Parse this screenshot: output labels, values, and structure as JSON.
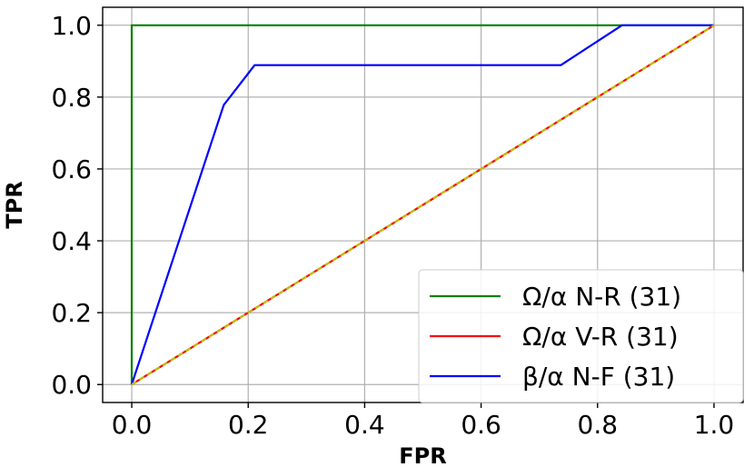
{
  "chart_data": {
    "type": "line",
    "xlabel": "FPR",
    "ylabel": "TPR",
    "xlim": [
      -0.05,
      1.05
    ],
    "ylim": [
      -0.05,
      1.05
    ],
    "xticks": [
      "0.0",
      "0.2",
      "0.4",
      "0.6",
      "0.8",
      "1.0"
    ],
    "yticks": [
      "0.0",
      "0.2",
      "0.4",
      "0.6",
      "0.8",
      "1.0"
    ],
    "grid": true,
    "legend_position": "bottom-right",
    "series": [
      {
        "name": "Ω/α N-R (31)",
        "color": "#008000",
        "dash": "solid",
        "x": [
          0.0,
          0.0,
          1.0
        ],
        "y": [
          0.0,
          1.0,
          1.0
        ]
      },
      {
        "name": "Ω/α V-R (31)",
        "color": "#ff0000",
        "dash": "solid",
        "x": [
          0.0,
          1.0
        ],
        "y": [
          0.0,
          1.0
        ]
      },
      {
        "name": "β/α N-F (31)",
        "color": "#0000ff",
        "dash": "solid",
        "x": [
          0.0,
          0.158,
          0.211,
          0.737,
          0.842,
          1.0
        ],
        "y": [
          0.0,
          0.778,
          0.889,
          0.889,
          1.0,
          1.0
        ]
      },
      {
        "name": "",
        "color": "#bfbf00",
        "dash": "dashed",
        "x": [
          0.0,
          1.0
        ],
        "y": [
          0.0,
          1.0
        ]
      }
    ]
  }
}
